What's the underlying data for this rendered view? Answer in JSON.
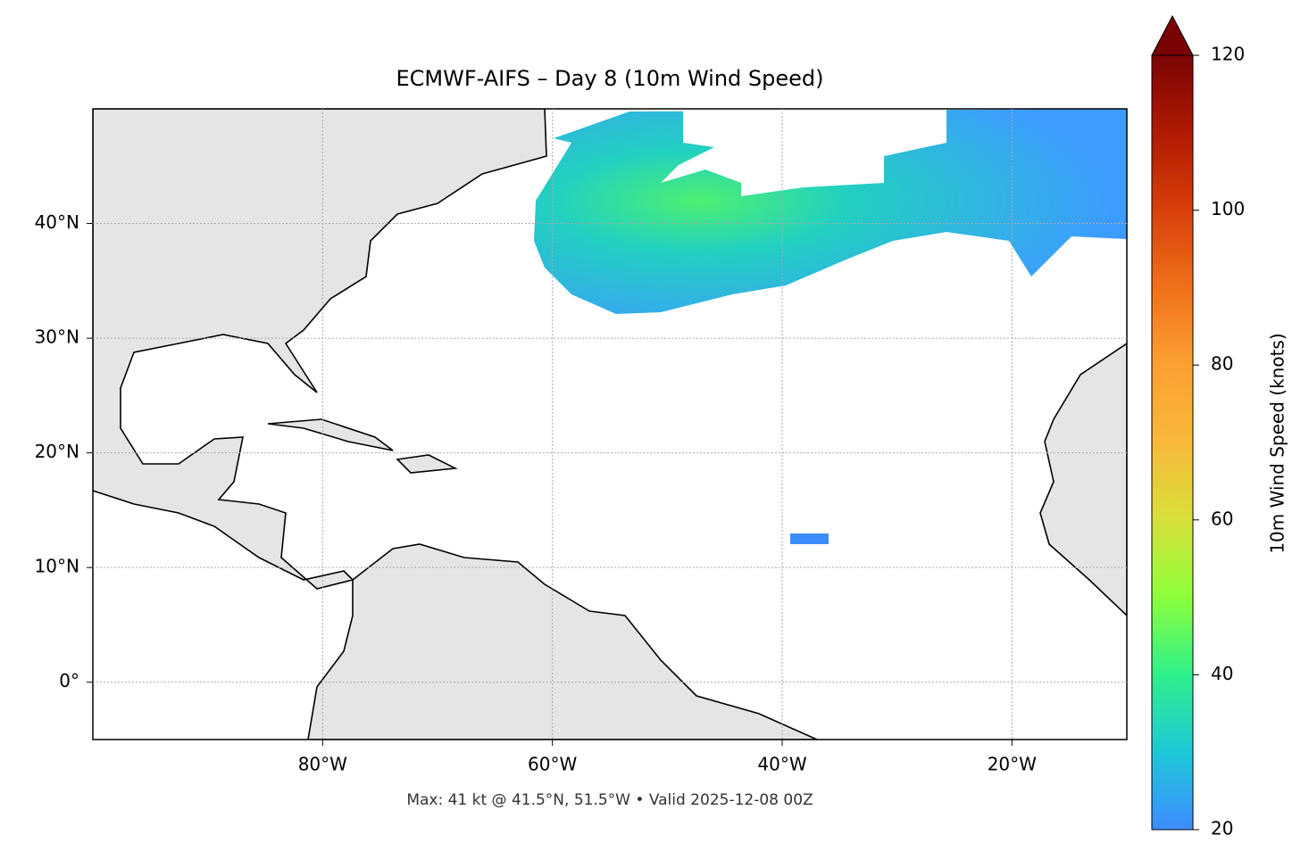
{
  "chart_data": {
    "type": "map",
    "title": "ECMWF-AIFS – Day 8 (10m Wind Speed)",
    "footnote": "Max: 41 kt @ 41.5°N, 51.5°W • Valid 2025-12-08 00Z",
    "xlim": [
      -100,
      -10
    ],
    "ylim": [
      -5,
      50
    ],
    "xticks": [
      {
        "value": -80,
        "label": "80°W"
      },
      {
        "value": -60,
        "label": "60°W"
      },
      {
        "value": -40,
        "label": "40°W"
      },
      {
        "value": -20,
        "label": "20°W"
      }
    ],
    "yticks": [
      {
        "value": 0,
        "label": "0°"
      },
      {
        "value": 10,
        "label": "10°N"
      },
      {
        "value": 20,
        "label": "20°N"
      },
      {
        "value": 30,
        "label": "30°N"
      },
      {
        "value": 40,
        "label": "40°N"
      }
    ],
    "grid": true,
    "colorbar": {
      "label": "10m Wind Speed (knots)",
      "lim": [
        20,
        120
      ],
      "ticks": [
        20,
        40,
        60,
        80,
        100,
        120
      ],
      "extend": "max",
      "colors": [
        "#3d8cff",
        "#1ec8d8",
        "#2ef08a",
        "#8cff3c",
        "#d8e03a",
        "#f8b83a",
        "#fca032",
        "#f0701a",
        "#d8400a",
        "#b01a02",
        "#7a0404"
      ]
    }
  }
}
